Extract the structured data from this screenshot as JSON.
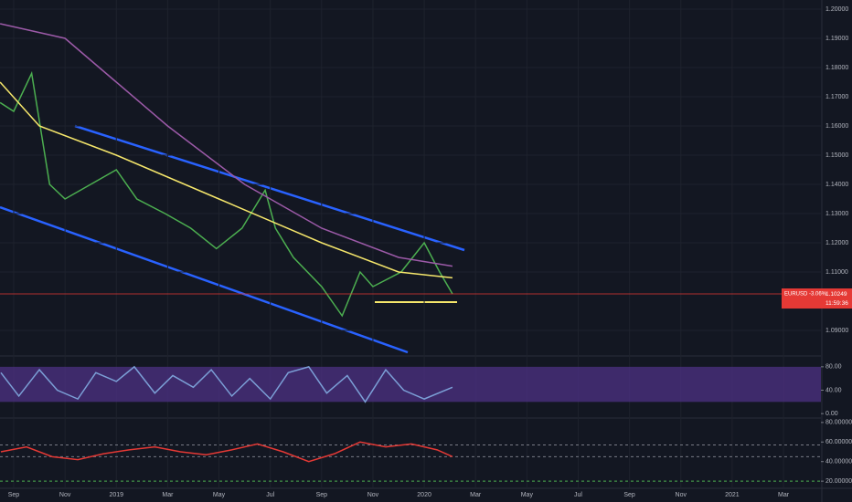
{
  "chart_data": [
    {
      "type": "line",
      "xlim": [
        0.466,
        32.46
      ],
      "xticks": [
        {
          "value": 1,
          "label": "Sep"
        },
        {
          "value": 3,
          "label": "Nov"
        },
        {
          "value": 5,
          "label": "2019"
        },
        {
          "value": 7,
          "label": "Mar"
        },
        {
          "value": 9,
          "label": "May"
        },
        {
          "value": 11,
          "label": "Jul"
        },
        {
          "value": 13,
          "label": "Sep"
        },
        {
          "value": 15,
          "label": "Nov"
        },
        {
          "value": 17,
          "label": "2020"
        },
        {
          "value": 19,
          "label": "Mar"
        },
        {
          "value": 21,
          "label": "May"
        },
        {
          "value": 23,
          "label": "Jul"
        },
        {
          "value": 25,
          "label": "Sep"
        },
        {
          "value": 27,
          "label": "Nov"
        },
        {
          "value": 29,
          "label": "2021"
        },
        {
          "value": 31,
          "label": "Mar"
        }
      ],
      "ylim": [
        1.081875,
        1.203125
      ],
      "yticks": [
        {
          "value": 1.2,
          "label": "1.20000"
        },
        {
          "value": 1.19,
          "label": "1.19000"
        },
        {
          "value": 1.18,
          "label": "1.18000"
        },
        {
          "value": 1.17,
          "label": "1.17000"
        },
        {
          "value": 1.16,
          "label": "1.16000"
        },
        {
          "value": 1.15,
          "label": "1.15000"
        },
        {
          "value": 1.14,
          "label": "1.14000"
        },
        {
          "value": 1.13,
          "label": "1.13000"
        },
        {
          "value": 1.12,
          "label": "1.12000"
        },
        {
          "value": 1.11,
          "label": "1.11000"
        },
        {
          "value": 1.09,
          "label": "1.09000"
        }
      ],
      "grid": true,
      "series": [
        {
          "color": "#4caf50",
          "x": [
            0.47,
            1.0,
            1.7,
            2.4,
            3.0,
            4.0,
            5.0,
            5.8,
            6.9,
            7.9,
            8.9,
            9.9,
            10.8,
            11.2,
            11.9,
            13.0,
            13.8,
            14.5,
            15.0,
            16.1,
            17.0,
            17.6,
            18.1
          ],
          "values": [
            1.168,
            1.165,
            1.178,
            1.14,
            1.135,
            1.14,
            1.145,
            1.135,
            1.13,
            1.125,
            1.118,
            1.125,
            1.138,
            1.125,
            1.115,
            1.105,
            1.095,
            1.11,
            1.105,
            1.11,
            1.12,
            1.11,
            1.1025
          ]
        },
        {
          "color": "#f5e66b",
          "x": [
            0.47,
            2,
            5,
            9,
            13,
            16,
            18.1
          ],
          "values": [
            1.175,
            1.16,
            1.15,
            1.135,
            1.12,
            1.11,
            1.108
          ]
        },
        {
          "color": "#9c5aa8",
          "x": [
            0.47,
            3,
            5,
            7,
            10,
            13,
            16,
            18.1
          ],
          "values": [
            1.195,
            1.19,
            1.175,
            1.16,
            1.14,
            1.125,
            1.115,
            1.112
          ]
        }
      ],
      "price_tag": "EURUSD -3.06%",
      "last_value": 1.10249,
      "countdown": "11:59:36",
      "last_color": "#e53935"
    },
    {
      "type": "line",
      "ylim": [
        -6,
        95.4
      ],
      "yticks": [
        {
          "value": 80,
          "label": "80.00"
        },
        {
          "value": 40,
          "label": "40.00"
        },
        {
          "value": 0,
          "label": "0.00"
        }
      ],
      "band": [
        20,
        80
      ],
      "band_color": "#4a2f7e",
      "series": [
        {
          "color": "#7b9fd6",
          "x": [
            0.5,
            1.2,
            2,
            2.7,
            3.5,
            4.2,
            5,
            5.7,
            6.5,
            7.2,
            8,
            8.7,
            9.5,
            10.2,
            11,
            11.7,
            12.5,
            13.2,
            14,
            14.7,
            15.5,
            16.2,
            17,
            18.1
          ],
          "values": [
            70,
            30,
            75,
            40,
            25,
            70,
            55,
            80,
            35,
            65,
            45,
            75,
            30,
            60,
            25,
            70,
            80,
            35,
            65,
            20,
            75,
            40,
            25,
            45
          ]
        }
      ]
    },
    {
      "type": "line",
      "ylim": [
        13.6,
        83.6
      ],
      "yticks": [
        {
          "value": 80,
          "label": "80.00000"
        },
        {
          "value": 60,
          "label": "60.00000"
        },
        {
          "value": 40,
          "label": "40.00000"
        },
        {
          "value": 20,
          "label": "20.00000"
        }
      ],
      "levels": [
        57,
        45,
        20
      ],
      "series": [
        {
          "color": "#e53935",
          "x": [
            0.5,
            1.5,
            2.5,
            3.5,
            4.5,
            5.5,
            6.5,
            7.5,
            8.5,
            9.5,
            10.5,
            11.5,
            12.5,
            13.5,
            14.5,
            15.5,
            16.5,
            17.5,
            18.1
          ],
          "values": [
            50,
            55,
            45,
            42,
            48,
            52,
            55,
            50,
            47,
            52,
            58,
            50,
            40,
            48,
            60,
            55,
            58,
            52,
            45
          ]
        }
      ]
    }
  ]
}
